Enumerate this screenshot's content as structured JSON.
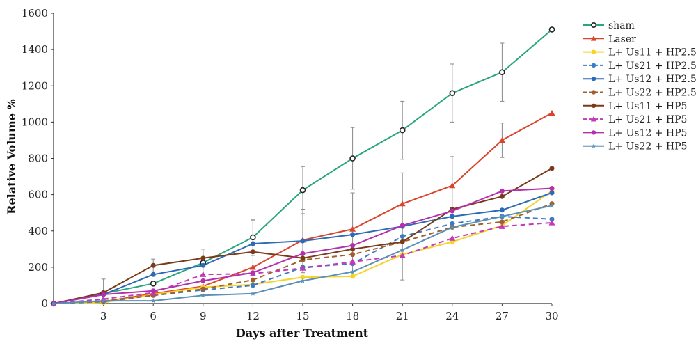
{
  "chart_data": {
    "type": "line",
    "xlabel": "Days after Treatment",
    "ylabel": "Relative Volume %",
    "xlim": [
      0,
      30
    ],
    "ylim": [
      0,
      1600
    ],
    "x_ticks": [
      3,
      6,
      9,
      12,
      15,
      18,
      21,
      24,
      27,
      30
    ],
    "y_ticks": [
      0,
      200,
      400,
      600,
      800,
      1000,
      1200,
      1400,
      1600
    ],
    "grid": false,
    "legend_position": "right",
    "x": [
      0,
      3,
      6,
      9,
      12,
      15,
      18,
      21,
      24,
      27,
      30
    ],
    "series": [
      {
        "name": "sham",
        "color": "#2aa67e",
        "marker": "circle-open",
        "dashed": false,
        "values": [
          0,
          55,
          110,
          225,
          365,
          625,
          800,
          955,
          1160,
          1275,
          1510
        ],
        "errors": [
          0,
          80,
          0,
          75,
          100,
          130,
          170,
          160,
          160,
          160,
          0
        ]
      },
      {
        "name": "Laser",
        "color": "#d9452b",
        "marker": "triangle",
        "dashed": false,
        "values": [
          0,
          10,
          55,
          95,
          200,
          350,
          410,
          550,
          650,
          900,
          1050
        ],
        "errors": [
          0,
          0,
          0,
          0,
          0,
          0,
          0,
          0,
          160,
          95,
          0
        ]
      },
      {
        "name": "L+ Us11 + HP2.5",
        "color": "#f5d327",
        "marker": "circle",
        "dashed": false,
        "values": [
          0,
          5,
          50,
          90,
          105,
          145,
          150,
          270,
          340,
          430,
          620
        ],
        "errors": [
          0,
          0,
          0,
          0,
          0,
          0,
          0,
          0,
          0,
          0,
          0
        ]
      },
      {
        "name": "L+ Us21 + HP2.5",
        "color": "#3b7bc4",
        "marker": "circle",
        "dashed": true,
        "values": [
          0,
          10,
          45,
          75,
          100,
          200,
          220,
          370,
          440,
          480,
          465
        ],
        "errors": [
          0,
          0,
          0,
          0,
          0,
          0,
          0,
          0,
          0,
          0,
          0
        ]
      },
      {
        "name": "L+ Us12 + HP2.5",
        "color": "#2b6ab5",
        "marker": "circle",
        "dashed": false,
        "values": [
          0,
          50,
          160,
          210,
          330,
          345,
          380,
          425,
          480,
          515,
          610
        ],
        "errors": [
          0,
          0,
          0,
          0,
          130,
          175,
          230,
          295,
          0,
          0,
          0
        ]
      },
      {
        "name": "L+ Us22 + HP2.5",
        "color": "#a0602e",
        "marker": "circle",
        "dashed": true,
        "values": [
          0,
          15,
          45,
          80,
          130,
          240,
          270,
          340,
          420,
          450,
          550
        ],
        "errors": [
          0,
          0,
          0,
          0,
          0,
          0,
          0,
          0,
          0,
          0,
          0
        ]
      },
      {
        "name": "L+ Us11 + HP5",
        "color": "#7a3a1a",
        "marker": "circle",
        "dashed": false,
        "values": [
          0,
          60,
          210,
          250,
          285,
          250,
          300,
          340,
          520,
          590,
          745
        ],
        "errors": [
          0,
          0,
          35,
          40,
          0,
          0,
          0,
          0,
          0,
          0,
          0
        ]
      },
      {
        "name": "L+ Us21 + HP5",
        "color": "#c23ab9",
        "marker": "triangle",
        "dashed": true,
        "values": [
          0,
          25,
          60,
          160,
          165,
          195,
          230,
          265,
          360,
          425,
          445
        ],
        "errors": [
          0,
          0,
          0,
          0,
          0,
          0,
          0,
          0,
          0,
          0,
          0
        ]
      },
      {
        "name": "L+ Us12 + HP5",
        "color": "#b32fae",
        "marker": "circle",
        "dashed": false,
        "values": [
          0,
          50,
          70,
          125,
          170,
          275,
          320,
          430,
          510,
          620,
          635
        ],
        "errors": [
          0,
          0,
          0,
          0,
          0,
          0,
          0,
          0,
          0,
          0,
          0
        ]
      },
      {
        "name": "L+ Us22 + HP5",
        "color": "#5a8fb8",
        "marker": "star",
        "dashed": false,
        "values": [
          0,
          15,
          15,
          45,
          55,
          125,
          175,
          295,
          420,
          480,
          540
        ],
        "errors": [
          0,
          0,
          0,
          0,
          0,
          0,
          0,
          0,
          0,
          0,
          0
        ]
      }
    ]
  }
}
